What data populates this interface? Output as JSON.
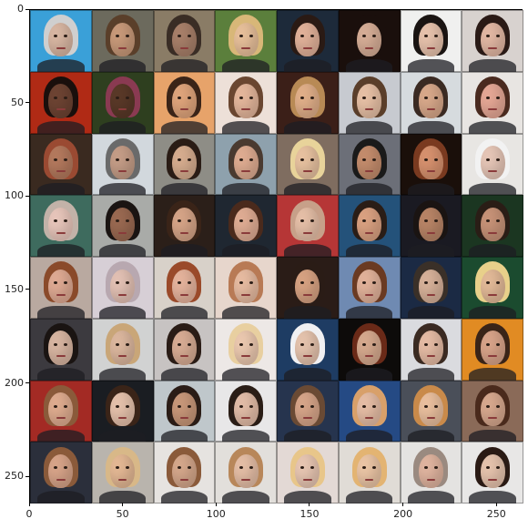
{
  "axes": {
    "x_ticks": [
      "0",
      "50",
      "100",
      "150",
      "200",
      "250"
    ],
    "y_ticks": [
      "0",
      "50",
      "100",
      "150",
      "200",
      "250"
    ],
    "x_tick_values": [
      0,
      50,
      100,
      150,
      200,
      250
    ],
    "y_tick_values": [
      0,
      50,
      100,
      150,
      200,
      250
    ],
    "x_range": [
      0,
      264
    ],
    "y_range": [
      0,
      264
    ]
  },
  "image_grid": {
    "rows": 8,
    "cols": 8,
    "tile_colors": [
      [
        "#3aa0d8",
        "#6c6a5d",
        "#8a7c66",
        "#5b7f3c",
        "#1d2a3a",
        "#1a0f0c",
        "#f0f0ef",
        "#d8d2cf"
      ],
      [
        "#b02a15",
        "#2e3f1f",
        "#e7a36a",
        "#ede0d8",
        "#3b1f18",
        "#c7cad0",
        "#d6dbde",
        "#e8e5e2"
      ],
      [
        "#3a2a20",
        "#d2d8dd",
        "#8e8d86",
        "#8ea1ad",
        "#7f6d60",
        "#6c6f78",
        "#1a0f0a",
        "#e8e6e3"
      ],
      [
        "#3e6b5e",
        "#a9aba8",
        "#2b1f19",
        "#1f2731",
        "#b63636",
        "#24527a",
        "#1a1a22",
        "#1b3621"
      ],
      [
        "#b9a9a0",
        "#d7cfd6",
        "#d8d1c9",
        "#e7d6cc",
        "#2a1c17",
        "#6f8ab2",
        "#1b2a44",
        "#1b4b2f"
      ],
      [
        "#3c3a3f",
        "#d1d2d2",
        "#c7c3c2",
        "#ede8e6",
        "#1e3c63",
        "#0d0b0a",
        "#dadbdf",
        "#e18b23"
      ],
      [
        "#a32a24",
        "#1a1d22",
        "#bfc7cb",
        "#e8e7e8",
        "#26344e",
        "#254a84",
        "#4a4f59",
        "#8a6a58"
      ],
      [
        "#2b2f3b",
        "#b9b4ad",
        "#e6e3e0",
        "#e2dfdb",
        "#e3d9d5",
        "#e0dcd6",
        "#e4e3e1",
        "#e8e7e6"
      ]
    ],
    "skin_colors": [
      [
        "#d9b7a3",
        "#c99a7a",
        "#a9806a",
        "#e8c09b",
        "#e2b29a",
        "#d7ae97",
        "#e8c3ad",
        "#e3b8a4"
      ],
      [
        "#6e4433",
        "#5a3928",
        "#e0a57c",
        "#e5b79c",
        "#e2b08a",
        "#e8c1a6",
        "#d9a98b",
        "#e6a896"
      ],
      [
        "#b57a5e",
        "#c69e88",
        "#d8ae90",
        "#e0ad92",
        "#e9c3a1",
        "#c58d6d",
        "#d8926f",
        "#e7c7b8"
      ],
      [
        "#e9c7bc",
        "#9b6a52",
        "#d7a588",
        "#e0ad94",
        "#e7c0a8",
        "#dba282",
        "#b98567",
        "#c89378"
      ],
      [
        "#e0ab94",
        "#e4c2b5",
        "#e6b49d",
        "#e8bca2",
        "#d8a383",
        "#e3b39b",
        "#d8b29a",
        "#e3ba98"
      ],
      [
        "#d9b6a2",
        "#ddb89f",
        "#d9ad95",
        "#ecc9b0",
        "#e6c4ae",
        "#d7aa8f",
        "#e6bca5",
        "#d9a48a"
      ],
      [
        "#e0ad90",
        "#e6c2ac",
        "#c9987a",
        "#e3bda8",
        "#d8a68a",
        "#e7bea6",
        "#ebc09f",
        "#d8a98f"
      ],
      [
        "#d9a58a",
        "#e5b995",
        "#d6a88c",
        "#e6bfa7",
        "#e9c7b3",
        "#ecc6a6",
        "#e1b5a0",
        "#e7c4ae"
      ]
    ],
    "hair_colors": [
      [
        "#cfcfcf",
        "#5a3f2a",
        "#3a2d25",
        "#d8b778",
        "#2a1a14",
        "#1a0f0c",
        "#1a1412",
        "#2a1a16"
      ],
      [
        "#1a0f0c",
        "#8a3a52",
        "#3a2418",
        "#6a4630",
        "#b88a55",
        "#5a3e2a",
        "#3a2a22",
        "#4a2a1f"
      ],
      [
        "#9a4a32",
        "#6a6a6a",
        "#2a1c15",
        "#4a3a30",
        "#e8d39a",
        "#1a1a1a",
        "#7a3a20",
        "#f2f2f2"
      ],
      [
        "#c2b2a8",
        "#1a1412",
        "#3a2418",
        "#4a2a1c",
        "#c7a089",
        "#2a1d16",
        "#1a1412",
        "#2a1d16"
      ],
      [
        "#8a4a2a",
        "#b8a8b0",
        "#9a4a2a",
        "#b87a55",
        "#2a1c16",
        "#6a3a22",
        "#3a3028",
        "#e8d08a"
      ],
      [
        "#1a1412",
        "#c9a678",
        "#2a1c16",
        "#e8cfa0",
        "#f0f0f2",
        "#6a2a18",
        "#3a2a22",
        "#3a2418"
      ],
      [
        "#8a5a3a",
        "#3a2418",
        "#2a1c16",
        "#2a1d16",
        "#6a4a34",
        "#d8a06a",
        "#c98a4a",
        "#4a2a1c"
      ],
      [
        "#8a5a3a",
        "#d8b888",
        "#8a5a3a",
        "#b8875a",
        "#e8c68a",
        "#e3b472",
        "#9a8a80",
        "#2a1a14"
      ]
    ]
  }
}
